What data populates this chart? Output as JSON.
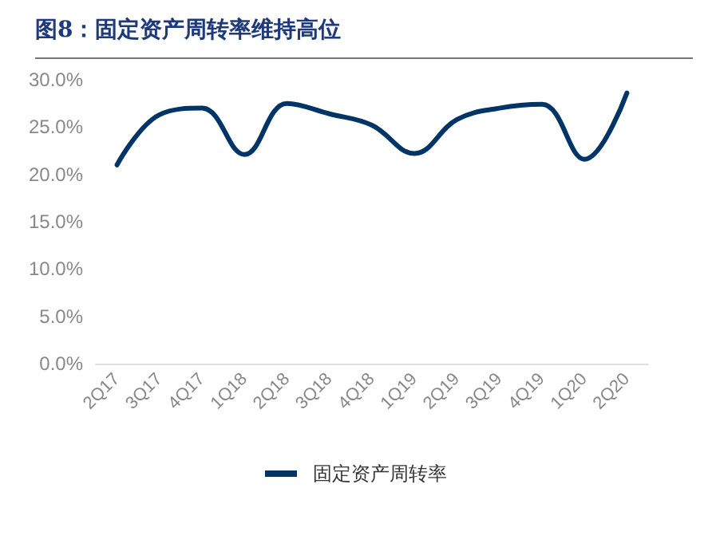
{
  "chart_data": {
    "type": "line",
    "title": "图8：固定资产周转率维持高位",
    "categories": [
      "2Q17",
      "3Q17",
      "4Q17",
      "1Q18",
      "2Q18",
      "3Q18",
      "4Q18",
      "1Q19",
      "2Q19",
      "3Q19",
      "4Q19",
      "1Q20",
      "2Q20"
    ],
    "series": [
      {
        "name": "固定资产周转率",
        "color": "#003566",
        "values": [
          21.0,
          26.3,
          27.0,
          22.1,
          27.5,
          26.4,
          25.2,
          22.2,
          25.8,
          27.0,
          27.4,
          21.6,
          28.6
        ]
      }
    ],
    "ylim": [
      0,
      30
    ],
    "yticks": [
      {
        "value": 0,
        "label": "0.0%"
      },
      {
        "value": 5,
        "label": "5.0%"
      },
      {
        "value": 10,
        "label": "10.0%"
      },
      {
        "value": 15,
        "label": "15.0%"
      },
      {
        "value": 20,
        "label": "20.0%"
      },
      {
        "value": 25,
        "label": "25.0%"
      },
      {
        "value": 30,
        "label": "30.0%"
      }
    ],
    "grid": false,
    "legend": "bottom",
    "marker": "none",
    "line_style": "solid"
  }
}
